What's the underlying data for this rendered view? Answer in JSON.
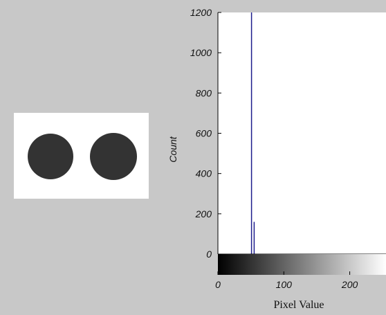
{
  "image_panel": {
    "background_color": "#ffffff",
    "blob_color": "#333333",
    "blob_count": 2
  },
  "chart_data": {
    "type": "bar",
    "title": "",
    "xlabel": "Pixel Value",
    "ylabel": "Count",
    "xlim": [
      0,
      255
    ],
    "ylim": [
      0,
      1200
    ],
    "x_ticks": [
      0,
      100,
      200
    ],
    "y_ticks": [
      0,
      200,
      400,
      600,
      800,
      1000,
      1200
    ],
    "series": [
      {
        "x": [
          51,
          55
        ],
        "values": [
          1200,
          160
        ]
      }
    ],
    "bar_color": "#1c1c8c",
    "colorbar": {
      "from": "#000000",
      "to": "#ffffff"
    },
    "grid": false
  }
}
